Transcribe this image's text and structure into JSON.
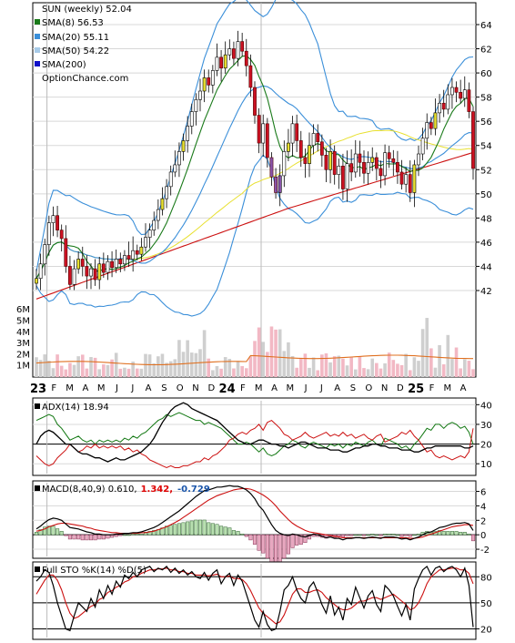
{
  "chart_data": [
    {
      "type": "candlestick",
      "panel": "price",
      "title": "SUN (weekly) 52.04",
      "ylim": [
        40,
        65
      ],
      "yticks": [
        "42",
        "44",
        "46",
        "48",
        "50",
        "52",
        "54",
        "56",
        "58",
        "60",
        "62",
        "64"
      ],
      "legend": [
        {
          "label": "SMA(8) 56.53",
          "color": "#1a7a1a"
        },
        {
          "label": "SMA(20) 55.11",
          "color": "#3b8fd9"
        },
        {
          "label": "SMA(50) 54.22",
          "color": "#a8cbe8"
        },
        {
          "label": "SMA(200)",
          "color": "#1010c8"
        }
      ],
      "watermark": "OptionChance.com",
      "x_labels": [
        "23",
        "F",
        "M",
        "A",
        "M",
        "J",
        "J",
        "A",
        "S",
        "O",
        "N",
        "D",
        "24",
        "F",
        "M",
        "A",
        "M",
        "J",
        "J",
        "A",
        "S",
        "O",
        "N",
        "D",
        "25",
        "F",
        "M",
        "A"
      ],
      "year_labels": [
        "23",
        "24",
        "25"
      ],
      "close": [
        43.0,
        44.2,
        45.8,
        47.6,
        48.2,
        47.0,
        46.3,
        44.0,
        42.5,
        43.8,
        44.6,
        44.0,
        43.2,
        43.8,
        42.9,
        44.2,
        43.5,
        44.4,
        43.9,
        44.6,
        44.2,
        44.9,
        44.6,
        45.3,
        45.0,
        45.6,
        46.4,
        47.0,
        47.8,
        48.7,
        49.6,
        50.6,
        51.8,
        52.4,
        53.5,
        54.4,
        55.6,
        56.8,
        57.8,
        58.5,
        59.6,
        59.0,
        60.2,
        61.3,
        60.4,
        61.5,
        62.0,
        61.2,
        62.6,
        61.8,
        60.6,
        58.8,
        56.5,
        54.2,
        55.8,
        53.0,
        51.4,
        50.1,
        51.5,
        53.5,
        54.2,
        55.8,
        54.4,
        53.0,
        52.5,
        54.0,
        55.0,
        54.3,
        53.2,
        52.0,
        53.5,
        51.6,
        52.3,
        50.4,
        52.5,
        51.8,
        53.3,
        52.6,
        51.7,
        52.6,
        53.0,
        52.1,
        51.5,
        53.4,
        52.9,
        52.6,
        51.8,
        50.8,
        51.6,
        50.1,
        52.4,
        53.3,
        54.6,
        55.9,
        55.4,
        56.7,
        57.5,
        57.0,
        58.2,
        58.8,
        58.4,
        57.9,
        58.6,
        56.8,
        52.1
      ],
      "volume_ylim": [
        0,
        6500000
      ],
      "volume_ticks": [
        "1M",
        "2M",
        "3M",
        "4M",
        "5M",
        "6M"
      ]
    },
    {
      "type": "line",
      "panel": "ADX",
      "label": "ADX(14) 18.94",
      "ylim": [
        5,
        42
      ],
      "yticks": [
        "10",
        "20",
        "30",
        "40"
      ],
      "series": [
        {
          "name": "ADX(14) 18.94",
          "color": "#000000",
          "values": [
            20,
            24,
            26,
            27,
            26,
            24,
            22,
            20,
            20,
            18,
            16,
            15,
            15,
            14,
            13,
            13,
            12,
            11,
            12,
            13,
            12,
            12,
            13,
            14,
            15,
            16,
            18,
            20,
            23,
            27,
            31,
            34,
            37,
            39,
            40,
            41,
            40,
            38,
            37,
            36,
            35,
            34,
            33,
            32,
            30,
            28,
            26,
            24,
            22,
            21,
            20,
            20,
            21,
            22,
            22,
            21,
            20,
            20,
            19,
            19,
            18,
            19,
            20,
            21,
            21,
            20,
            19,
            18,
            18,
            18,
            17,
            17,
            17,
            16,
            16,
            17,
            18,
            18,
            19,
            19,
            20,
            20,
            19,
            19,
            18,
            18,
            18,
            17,
            17,
            17,
            16,
            16,
            17,
            18,
            18,
            19,
            19,
            19,
            19,
            19,
            19,
            19,
            18,
            18,
            19
          ]
        },
        {
          "name": "",
          "color": "#117711",
          "values": [
            32,
            33,
            34,
            35,
            34,
            30,
            28,
            25,
            22,
            23,
            24,
            22,
            21,
            22,
            20,
            22,
            21,
            22,
            21,
            22,
            21,
            23,
            22,
            24,
            23,
            25,
            26,
            28,
            30,
            32,
            33,
            35,
            34,
            35,
            36,
            35,
            34,
            33,
            32,
            32,
            30,
            31,
            30,
            29,
            28,
            26,
            24,
            22,
            20,
            20,
            21,
            20,
            18,
            16,
            18,
            15,
            14,
            15,
            17,
            19,
            20,
            22,
            21,
            19,
            18,
            20,
            21,
            20,
            19,
            18,
            20,
            19,
            20,
            18,
            20,
            19,
            21,
            20,
            19,
            21,
            22,
            20,
            19,
            23,
            22,
            21,
            20,
            18,
            19,
            17,
            20,
            22,
            25,
            28,
            27,
            30,
            30,
            28,
            30,
            31,
            30,
            28,
            29,
            26,
            20
          ]
        },
        {
          "name": "",
          "color": "#cc1111",
          "values": [
            14,
            12,
            10,
            9,
            10,
            13,
            15,
            17,
            20,
            18,
            16,
            17,
            19,
            18,
            20,
            18,
            19,
            18,
            19,
            18,
            19,
            17,
            18,
            16,
            17,
            15,
            14,
            12,
            11,
            10,
            9,
            8,
            9,
            8,
            8,
            9,
            9,
            10,
            11,
            11,
            13,
            12,
            14,
            15,
            17,
            19,
            22,
            23,
            25,
            26,
            25,
            27,
            28,
            30,
            27,
            31,
            32,
            30,
            28,
            25,
            24,
            22,
            23,
            24,
            26,
            24,
            23,
            24,
            25,
            26,
            24,
            25,
            24,
            26,
            24,
            25,
            23,
            24,
            25,
            23,
            22,
            24,
            25,
            21,
            22,
            23,
            24,
            26,
            25,
            27,
            24,
            22,
            19,
            16,
            17,
            14,
            13,
            14,
            13,
            12,
            13,
            14,
            13,
            16,
            28
          ]
        }
      ]
    },
    {
      "type": "line",
      "panel": "MACD",
      "label": "MACD(8,40,9) 0.610,",
      "values_text": [
        "1.342,",
        "-0.729"
      ],
      "values_text_colors": [
        "#dd0000",
        "#1a55aa"
      ],
      "ylim": [
        -3,
        7.2
      ],
      "yticks": [
        "-2",
        "0",
        "2",
        "4",
        "6"
      ],
      "macd": [
        0.8,
        1.2,
        1.7,
        2.1,
        2.3,
        2.2,
        2.0,
        1.5,
        1.0,
        0.9,
        0.8,
        0.6,
        0.4,
        0.3,
        0.1,
        0.1,
        0.0,
        0.0,
        0.0,
        0.1,
        0.1,
        0.2,
        0.2,
        0.3,
        0.3,
        0.4,
        0.6,
        0.8,
        1.0,
        1.3,
        1.7,
        2.1,
        2.5,
        2.9,
        3.3,
        3.8,
        4.3,
        4.8,
        5.3,
        5.7,
        6.1,
        6.2,
        6.4,
        6.6,
        6.6,
        6.7,
        6.8,
        6.7,
        6.7,
        6.5,
        6.2,
        5.7,
        5.0,
        4.0,
        3.4,
        2.4,
        1.4,
        0.6,
        0.2,
        0.0,
        -0.1,
        0.1,
        0.0,
        -0.2,
        -0.3,
        -0.1,
        0.1,
        0.0,
        -0.2,
        -0.4,
        -0.3,
        -0.5,
        -0.5,
        -0.7,
        -0.5,
        -0.5,
        -0.4,
        -0.4,
        -0.5,
        -0.4,
        -0.3,
        -0.4,
        -0.5,
        -0.3,
        -0.3,
        -0.3,
        -0.4,
        -0.6,
        -0.5,
        -0.7,
        -0.5,
        -0.3,
        0.0,
        0.3,
        0.4,
        0.7,
        1.0,
        1.1,
        1.3,
        1.5,
        1.6,
        1.6,
        1.7,
        1.5,
        0.6
      ],
      "signal": [
        0.5,
        0.6,
        0.8,
        1.1,
        1.3,
        1.5,
        1.6,
        1.6,
        1.5,
        1.4,
        1.3,
        1.2,
        1.0,
        0.9,
        0.7,
        0.6,
        0.5,
        0.4,
        0.3,
        0.3,
        0.2,
        0.2,
        0.2,
        0.2,
        0.2,
        0.3,
        0.3,
        0.4,
        0.5,
        0.7,
        0.9,
        1.1,
        1.4,
        1.7,
        2.0,
        2.4,
        2.8,
        3.2,
        3.6,
        4.0,
        4.4,
        4.8,
        5.1,
        5.4,
        5.6,
        5.8,
        6.0,
        6.2,
        6.3,
        6.4,
        6.4,
        6.3,
        6.1,
        5.8,
        5.5,
        5.1,
        4.6,
        4.0,
        3.3,
        2.7,
        2.1,
        1.6,
        1.2,
        0.9,
        0.6,
        0.4,
        0.3,
        0.2,
        0.1,
        0.0,
        -0.1,
        -0.2,
        -0.3,
        -0.4,
        -0.4,
        -0.4,
        -0.4,
        -0.4,
        -0.4,
        -0.4,
        -0.4,
        -0.4,
        -0.4,
        -0.4,
        -0.4,
        -0.4,
        -0.4,
        -0.4,
        -0.4,
        -0.5,
        -0.5,
        -0.4,
        -0.3,
        -0.1,
        0.1,
        0.3,
        0.5,
        0.7,
        0.9,
        1.1,
        1.2,
        1.3,
        1.4,
        1.4,
        1.3
      ]
    },
    {
      "type": "line",
      "panel": "STO",
      "label": "Full STO %K(14) %D(5)",
      "ylim": [
        10,
        95
      ],
      "yticks": [
        "20",
        "50",
        "80"
      ],
      "k": [
        75,
        80,
        88,
        85,
        70,
        50,
        35,
        20,
        18,
        35,
        50,
        45,
        40,
        55,
        45,
        65,
        55,
        70,
        60,
        75,
        68,
        82,
        78,
        85,
        80,
        88,
        90,
        92,
        86,
        90,
        88,
        92,
        85,
        90,
        84,
        88,
        82,
        86,
        80,
        78,
        85,
        76,
        84,
        88,
        72,
        80,
        84,
        70,
        82,
        75,
        60,
        45,
        30,
        22,
        40,
        25,
        18,
        20,
        40,
        65,
        70,
        80,
        65,
        55,
        50,
        68,
        74,
        62,
        48,
        38,
        58,
        36,
        45,
        30,
        55,
        48,
        68,
        56,
        44,
        58,
        64,
        48,
        40,
        70,
        65,
        58,
        46,
        35,
        48,
        30,
        66,
        78,
        88,
        92,
        82,
        90,
        92,
        86,
        90,
        92,
        88,
        80,
        90,
        70,
        22
      ],
      "d": [
        60,
        68,
        76,
        82,
        82,
        76,
        65,
        50,
        38,
        32,
        34,
        38,
        42,
        46,
        48,
        54,
        56,
        62,
        64,
        68,
        70,
        74,
        76,
        80,
        81,
        84,
        86,
        88,
        88,
        89,
        89,
        90,
        88,
        88,
        86,
        86,
        84,
        84,
        82,
        82,
        82,
        81,
        82,
        83,
        80,
        80,
        81,
        78,
        78,
        77,
        72,
        64,
        54,
        44,
        38,
        34,
        30,
        26,
        28,
        36,
        48,
        60,
        66,
        66,
        62,
        62,
        64,
        65,
        62,
        56,
        52,
        48,
        44,
        42,
        42,
        44,
        48,
        52,
        52,
        54,
        56,
        56,
        54,
        56,
        58,
        60,
        56,
        52,
        48,
        42,
        44,
        50,
        60,
        72,
        80,
        84,
        88,
        88,
        89,
        90,
        90,
        88,
        88,
        84,
        72
      ]
    }
  ]
}
